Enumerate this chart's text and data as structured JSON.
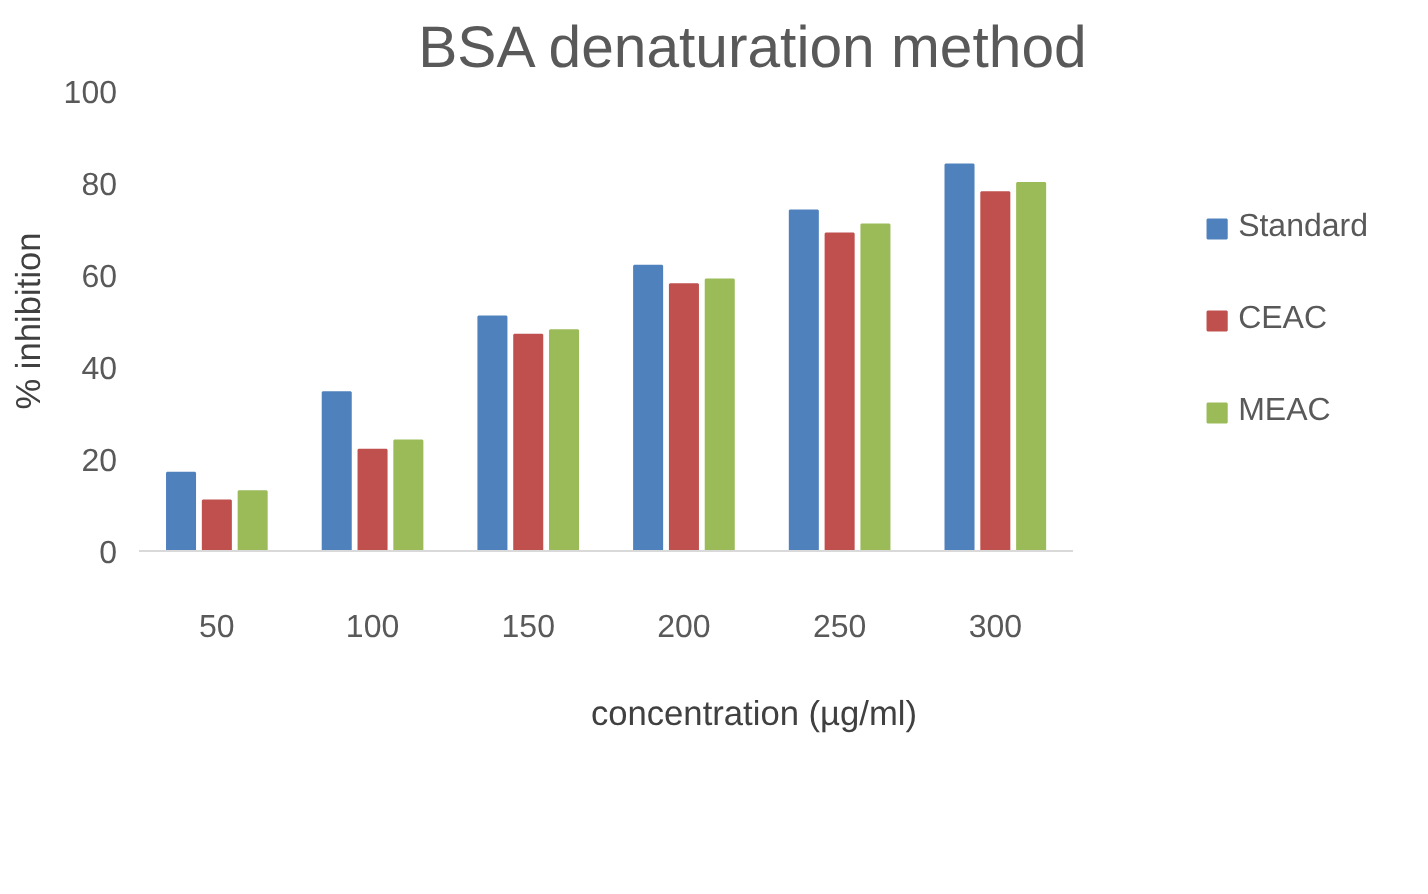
{
  "chart_data": {
    "type": "bar",
    "title": "BSA denaturation method",
    "xlabel": "concentration (µg/ml)",
    "ylabel": "% inhibition",
    "categories": [
      "50",
      "100",
      "150",
      "200",
      "250",
      "300"
    ],
    "series": [
      {
        "name": "Standard",
        "color": "#4f81bd",
        "values": [
          17,
          34.5,
          51,
          62,
          74,
          84
        ]
      },
      {
        "name": "CEAC",
        "color": "#c0504d",
        "values": [
          11,
          22,
          47,
          58,
          69,
          78
        ]
      },
      {
        "name": "MEAC",
        "color": "#9bbb59",
        "values": [
          13,
          24,
          48,
          59,
          71,
          80
        ]
      }
    ],
    "ylim": [
      0,
      100
    ],
    "yticks": [
      0,
      20,
      40,
      60,
      80,
      100
    ],
    "grid": false,
    "legend": "right"
  }
}
